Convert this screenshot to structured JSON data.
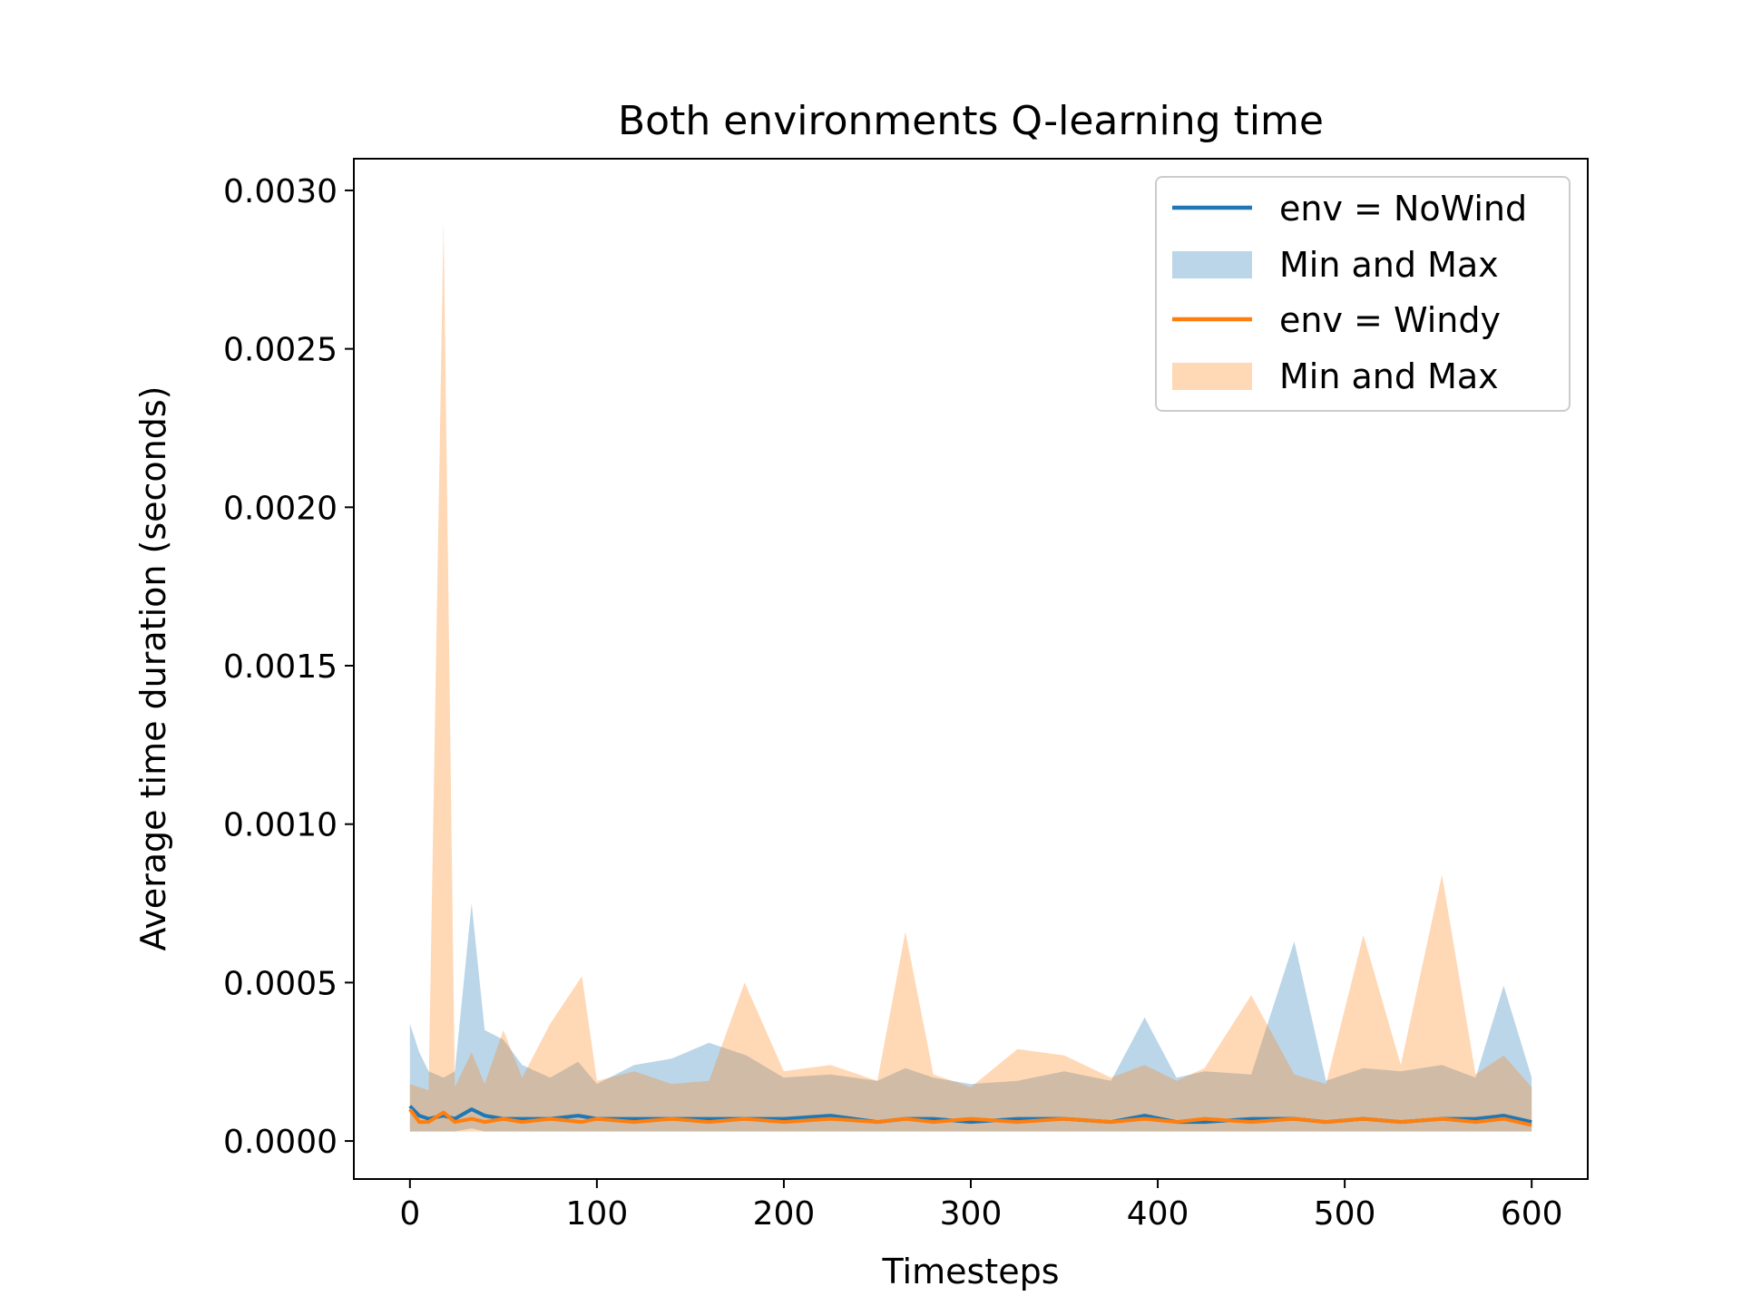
{
  "chart_data": {
    "type": "line",
    "title": "Both environments Q-learning time",
    "xlabel": "Timesteps",
    "ylabel": "Average time duration (seconds)",
    "xlim": [
      -30,
      630
    ],
    "ylim": [
      -0.00012,
      0.0031
    ],
    "xticks": [
      0,
      100,
      200,
      300,
      400,
      500,
      600
    ],
    "xtick_labels": [
      "0",
      "100",
      "200",
      "300",
      "400",
      "500",
      "600"
    ],
    "yticks": [
      0,
      0.0005,
      0.001,
      0.0015,
      0.002,
      0.0025,
      0.003
    ],
    "ytick_labels": [
      "0.0000",
      "0.0005",
      "0.0010",
      "0.0015",
      "0.0020",
      "0.0025",
      "0.0030"
    ],
    "grid": false,
    "legend_position": "top-right",
    "series": [
      {
        "name": "env = NoWind",
        "color": "#1f77b4",
        "band_name": "Min and Max",
        "band_color": "#1f77b4",
        "x": [
          0,
          5,
          10,
          18,
          24,
          33,
          40,
          50,
          60,
          75,
          90,
          100,
          120,
          140,
          160,
          180,
          200,
          225,
          250,
          265,
          280,
          300,
          325,
          350,
          375,
          393,
          410,
          425,
          450,
          473,
          490,
          510,
          530,
          552,
          570,
          585,
          600
        ],
        "y": [
          0.00011,
          8e-05,
          7e-05,
          8e-05,
          7e-05,
          0.0001,
          8e-05,
          7e-05,
          7e-05,
          7e-05,
          8e-05,
          7e-05,
          7e-05,
          7e-05,
          7e-05,
          7e-05,
          7e-05,
          8e-05,
          6e-05,
          7e-05,
          7e-05,
          6e-05,
          7e-05,
          7e-05,
          6e-05,
          8e-05,
          6e-05,
          6e-05,
          7e-05,
          7e-05,
          6e-05,
          7e-05,
          6e-05,
          7e-05,
          7e-05,
          8e-05,
          6e-05
        ],
        "min": [
          3e-05,
          3e-05,
          3e-05,
          3e-05,
          3e-05,
          4e-05,
          3e-05,
          3e-05,
          3e-05,
          3e-05,
          3e-05,
          3e-05,
          3e-05,
          3e-05,
          3e-05,
          3e-05,
          3e-05,
          3e-05,
          3e-05,
          3e-05,
          3e-05,
          3e-05,
          3e-05,
          3e-05,
          3e-05,
          3e-05,
          3e-05,
          3e-05,
          3e-05,
          3e-05,
          3e-05,
          3e-05,
          3e-05,
          3e-05,
          3e-05,
          3e-05,
          3e-05
        ],
        "max": [
          0.00037,
          0.00028,
          0.00022,
          0.0002,
          0.00022,
          0.00075,
          0.00035,
          0.00032,
          0.00024,
          0.0002,
          0.00025,
          0.00018,
          0.00024,
          0.00026,
          0.00031,
          0.00027,
          0.0002,
          0.00021,
          0.00019,
          0.00023,
          0.0002,
          0.00018,
          0.00019,
          0.00022,
          0.00019,
          0.00039,
          0.0002,
          0.00022,
          0.00021,
          0.00063,
          0.00019,
          0.00023,
          0.00022,
          0.00024,
          0.0002,
          0.00049,
          0.0002
        ]
      },
      {
        "name": "env = Windy",
        "color": "#ff7f0e",
        "band_name": "Min and Max",
        "band_color": "#ff7f0e",
        "x": [
          0,
          5,
          10,
          18,
          24,
          33,
          40,
          50,
          60,
          75,
          92,
          100,
          120,
          140,
          160,
          179,
          200,
          225,
          250,
          265,
          280,
          300,
          325,
          350,
          375,
          393,
          410,
          425,
          450,
          473,
          490,
          510,
          530,
          552,
          570,
          585,
          600
        ],
        "y": [
          0.0001,
          6e-05,
          6e-05,
          9e-05,
          6e-05,
          7e-05,
          6e-05,
          7e-05,
          6e-05,
          7e-05,
          6e-05,
          7e-05,
          6e-05,
          7e-05,
          6e-05,
          7e-05,
          6e-05,
          7e-05,
          6e-05,
          7e-05,
          6e-05,
          7e-05,
          6e-05,
          7e-05,
          6e-05,
          7e-05,
          6e-05,
          7e-05,
          6e-05,
          7e-05,
          6e-05,
          7e-05,
          6e-05,
          7e-05,
          6e-05,
          7e-05,
          5e-05
        ],
        "min": [
          3e-05,
          3e-05,
          3e-05,
          3e-05,
          3e-05,
          3e-05,
          3e-05,
          3e-05,
          3e-05,
          3e-05,
          3e-05,
          3e-05,
          3e-05,
          3e-05,
          3e-05,
          3e-05,
          3e-05,
          3e-05,
          3e-05,
          3e-05,
          3e-05,
          3e-05,
          3e-05,
          3e-05,
          3e-05,
          3e-05,
          3e-05,
          3e-05,
          3e-05,
          3e-05,
          3e-05,
          3e-05,
          3e-05,
          3e-05,
          3e-05,
          3e-05,
          3e-05
        ],
        "max": [
          0.00018,
          0.00017,
          0.00016,
          0.0029,
          0.00017,
          0.00028,
          0.00018,
          0.00035,
          0.0002,
          0.00037,
          0.00052,
          0.00019,
          0.00022,
          0.00018,
          0.00019,
          0.0005,
          0.00022,
          0.00024,
          0.00019,
          0.00066,
          0.00021,
          0.00017,
          0.00029,
          0.00027,
          0.0002,
          0.00024,
          0.00019,
          0.00023,
          0.00046,
          0.00021,
          0.00018,
          0.00065,
          0.00024,
          0.00084,
          0.00021,
          0.00027,
          0.00017
        ]
      }
    ]
  }
}
